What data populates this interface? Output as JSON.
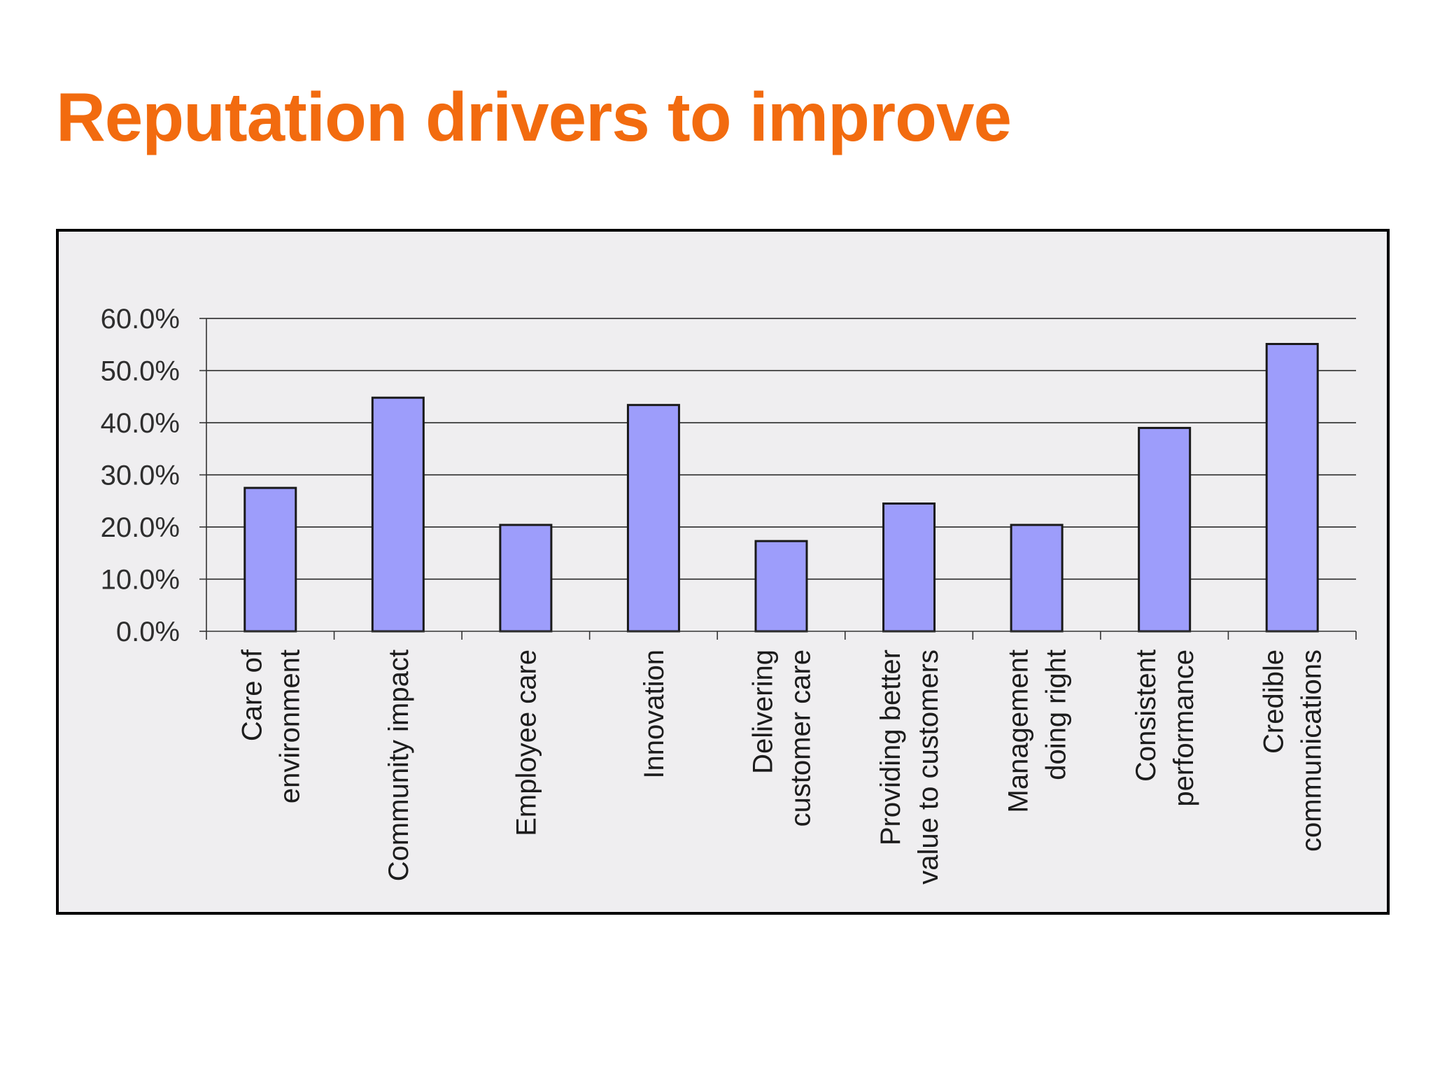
{
  "slide": {
    "title": "Reputation drivers to improve"
  },
  "colors": {
    "title": "#f26b0f",
    "chart_background": "#efeef0",
    "bar_fill": "#9d9dfb",
    "bar_stroke": "#1a1a1a",
    "gridline": "#1a1a1a",
    "axis": "#333333"
  },
  "chart_data": {
    "type": "bar",
    "title": "",
    "xlabel": "",
    "ylabel": "",
    "ylim": [
      0,
      60
    ],
    "yticks": [
      0,
      10,
      20,
      30,
      40,
      50,
      60
    ],
    "ytick_labels": [
      "0.0%",
      "10.0%",
      "20.0%",
      "30.0%",
      "40.0%",
      "50.0%",
      "60.0%"
    ],
    "grid": true,
    "legend": "none",
    "categories": [
      "Care of environment",
      "Community impact",
      "Employee care",
      "Innovation",
      "Delivering customer care",
      "Providing better value to customers",
      "Management doing right",
      "Consistent performance",
      "Credible communications"
    ],
    "category_label_lines": [
      [
        "Care of",
        "environment"
      ],
      [
        "Community impact"
      ],
      [
        "Employee care"
      ],
      [
        "Innovation"
      ],
      [
        "Delivering",
        "customer care"
      ],
      [
        "Providing better",
        "value to customers"
      ],
      [
        "Management",
        "doing right"
      ],
      [
        "Consistent",
        "performance"
      ],
      [
        "Credible",
        "communications"
      ]
    ],
    "values": [
      27.5,
      44.8,
      20.4,
      43.4,
      17.3,
      24.5,
      20.4,
      39.0,
      55.1
    ],
    "value_unit": "%"
  }
}
